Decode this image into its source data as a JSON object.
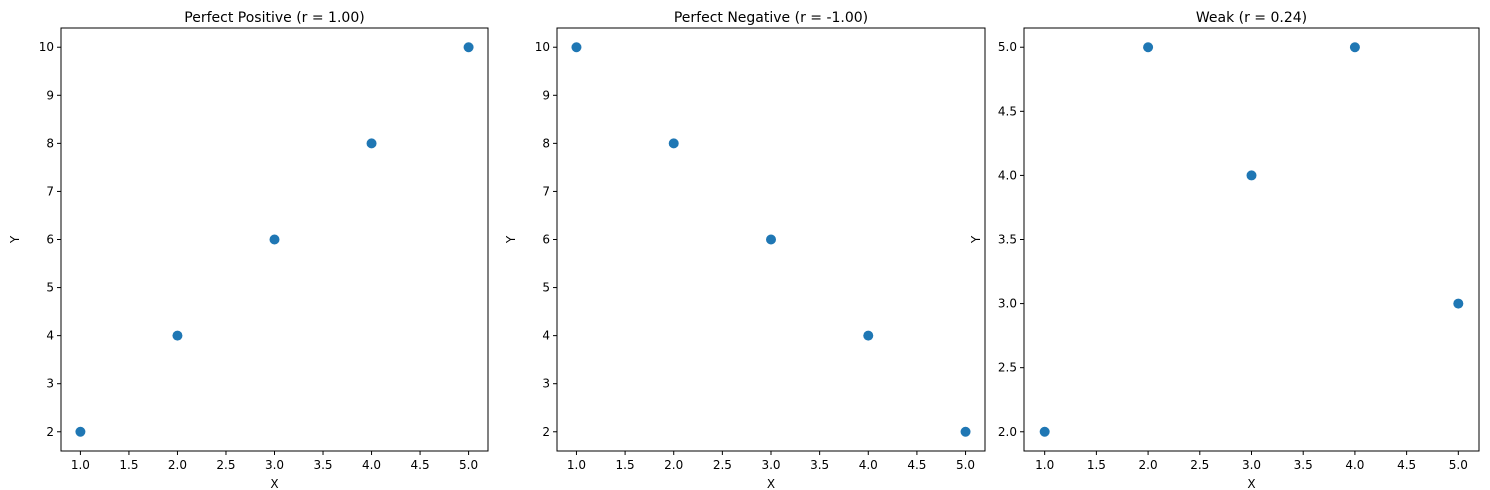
{
  "chart_data": [
    {
      "type": "scatter",
      "title": "Perfect Positive (r = 1.00)",
      "xlabel": "X",
      "ylabel": "Y",
      "x": [
        1,
        2,
        3,
        4,
        5
      ],
      "y": [
        2,
        4,
        6,
        8,
        10
      ],
      "xlim": [
        0.8,
        5.2
      ],
      "ylim": [
        1.6,
        10.4
      ],
      "xticks": [
        "1.0",
        "1.5",
        "2.0",
        "2.5",
        "3.0",
        "3.5",
        "4.0",
        "4.5",
        "5.0"
      ],
      "yticks": [
        "2",
        "3",
        "4",
        "5",
        "6",
        "7",
        "8",
        "9",
        "10"
      ],
      "grid": false,
      "color": "#1f77b4"
    },
    {
      "type": "scatter",
      "title": "Perfect Negative (r = -1.00)",
      "xlabel": "X",
      "ylabel": "Y",
      "x": [
        1,
        2,
        3,
        4,
        5
      ],
      "y": [
        10,
        8,
        6,
        4,
        2
      ],
      "xlim": [
        0.8,
        5.2
      ],
      "ylim": [
        1.6,
        10.4
      ],
      "xticks": [
        "1.0",
        "1.5",
        "2.0",
        "2.5",
        "3.0",
        "3.5",
        "4.0",
        "4.5",
        "5.0"
      ],
      "yticks": [
        "2",
        "3",
        "4",
        "5",
        "6",
        "7",
        "8",
        "9",
        "10"
      ],
      "grid": false,
      "color": "#1f77b4"
    },
    {
      "type": "scatter",
      "title": "Weak (r = 0.24)",
      "xlabel": "X",
      "ylabel": "Y",
      "x": [
        1,
        2,
        3,
        4,
        5
      ],
      "y": [
        2,
        5,
        4,
        5,
        3
      ],
      "xlim": [
        0.8,
        5.2
      ],
      "ylim": [
        1.85,
        5.15
      ],
      "xticks": [
        "1.0",
        "1.5",
        "2.0",
        "2.5",
        "3.0",
        "3.5",
        "4.0",
        "4.5",
        "5.0"
      ],
      "yticks": [
        "2.0",
        "2.5",
        "3.0",
        "3.5",
        "4.0",
        "4.5",
        "5.0"
      ],
      "grid": false,
      "color": "#1f77b4"
    }
  ]
}
